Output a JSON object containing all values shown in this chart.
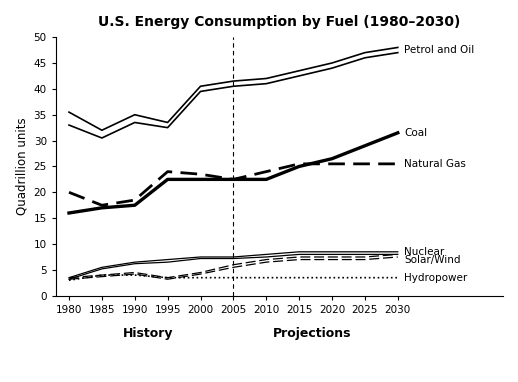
{
  "title": "U.S. Energy Consumption by Fuel (1980–2030)",
  "ylabel": "Quadrillion units",
  "xlabel_history": "History",
  "xlabel_projections": "Projections",
  "years": [
    1980,
    1985,
    1990,
    1995,
    2000,
    2005,
    2010,
    2015,
    2020,
    2025,
    2030
  ],
  "petrol_oil_upper": [
    35.5,
    32.0,
    35.0,
    33.5,
    40.5,
    41.5,
    42.0,
    43.5,
    45.0,
    47.0,
    48.0
  ],
  "petrol_oil_lower": [
    33.0,
    30.5,
    33.5,
    32.5,
    39.5,
    40.5,
    41.0,
    42.5,
    44.0,
    46.0,
    47.0
  ],
  "coal": [
    16.0,
    17.0,
    17.5,
    22.5,
    22.5,
    22.5,
    22.5,
    25.0,
    26.5,
    29.0,
    31.5
  ],
  "natural_gas": [
    20.0,
    17.5,
    18.5,
    24.0,
    23.5,
    22.5,
    24.0,
    25.5,
    25.5,
    25.5,
    25.5
  ],
  "nuclear_upper": [
    3.5,
    5.5,
    6.5,
    7.0,
    7.5,
    7.5,
    8.0,
    8.5,
    8.5,
    8.5,
    8.5
  ],
  "nuclear_lower": [
    3.2,
    5.2,
    6.2,
    6.5,
    7.2,
    7.2,
    7.5,
    8.0,
    8.0,
    8.0,
    8.0
  ],
  "solar_wind_upper": [
    3.5,
    4.0,
    4.5,
    3.5,
    4.5,
    6.0,
    7.0,
    7.5,
    7.5,
    7.5,
    8.0
  ],
  "solar_wind_lower": [
    3.2,
    3.7,
    4.2,
    3.2,
    4.2,
    5.5,
    6.5,
    7.0,
    7.0,
    7.0,
    7.5
  ],
  "hydropower": [
    3.0,
    4.0,
    4.0,
    3.5,
    3.5,
    3.5,
    3.5,
    3.5,
    3.5,
    3.5,
    3.5
  ],
  "history_boundary": 2005,
  "ylim": [
    0,
    50
  ],
  "yticks": [
    0,
    5,
    10,
    15,
    20,
    25,
    30,
    35,
    40,
    45,
    50
  ],
  "xticks": [
    1980,
    1985,
    1990,
    1995,
    2000,
    2005,
    2010,
    2015,
    2020,
    2025,
    2030
  ],
  "background_color": "#ffffff",
  "line_color": "#000000",
  "label_petrol": "Petrol and Oil",
  "label_coal": "Coal",
  "label_gas": "Natural Gas",
  "label_nuclear": "Nuclear",
  "label_solar": "Solar/Wind",
  "label_hydro": "Hydropower"
}
